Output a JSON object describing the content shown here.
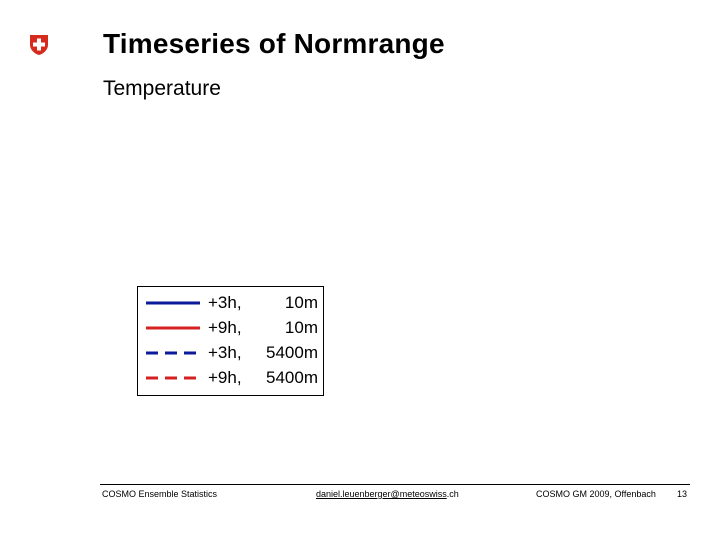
{
  "logo": {
    "name": "swiss-cross",
    "colors": {
      "background": "#d52b1e",
      "cross": "#ffffff"
    }
  },
  "slide": {
    "title": "Timeseries of Normrange",
    "subtitle": "Temperature"
  },
  "legend": {
    "items": [
      {
        "lead": "+3h,",
        "height": "10m",
        "color": "#0a1a9a",
        "style": "solid"
      },
      {
        "lead": "+9h,",
        "height": "10m",
        "color": "#d42020",
        "style": "solid"
      },
      {
        "lead": "+3h,",
        "height": "5400m",
        "color": "#0a1a9a",
        "style": "dashed"
      },
      {
        "lead": "+9h,",
        "height": "5400m",
        "color": "#d42020",
        "style": "dashed"
      }
    ]
  },
  "footer": {
    "left": "COSMO Ensemble Statistics",
    "email_link": "daniel.leuenberger@meteoswiss",
    "email_suffix": ".ch",
    "conference": "COSMO GM 2009, Offenbach",
    "page_number": "13"
  }
}
